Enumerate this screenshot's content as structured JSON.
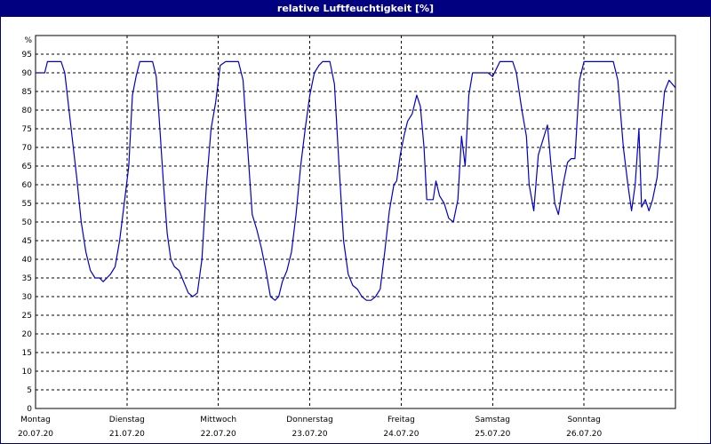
{
  "chart_data": {
    "type": "line",
    "title": "relative Luftfeuchtigkeit [%]",
    "y_unit": "%",
    "ylim": [
      0,
      100
    ],
    "yticks": [
      0,
      5,
      10,
      15,
      20,
      25,
      30,
      35,
      40,
      45,
      50,
      55,
      60,
      65,
      70,
      75,
      80,
      85,
      90,
      95
    ],
    "grid": true,
    "days": [
      {
        "weekday": "Montag",
        "date": "20.07.20"
      },
      {
        "weekday": "Dienstag",
        "date": "21.07.20"
      },
      {
        "weekday": "Mittwoch",
        "date": "22.07.20"
      },
      {
        "weekday": "Donnerstag",
        "date": "23.07.20"
      },
      {
        "weekday": "Freitag",
        "date": "24.07.20"
      },
      {
        "weekday": "Samstag",
        "date": "25.07.20"
      },
      {
        "weekday": "Sonntag",
        "date": "26.07.20"
      }
    ],
    "x_unit_note": "x in days since start of Monday 20.07.20",
    "xlim": [
      0,
      7
    ],
    "series": [
      {
        "color": "#0000cc",
        "points": [
          [
            0.0,
            90
          ],
          [
            0.1,
            90
          ],
          [
            0.13,
            93
          ],
          [
            0.28,
            93
          ],
          [
            0.32,
            90
          ],
          [
            0.38,
            77
          ],
          [
            0.45,
            62
          ],
          [
            0.5,
            50
          ],
          [
            0.55,
            42
          ],
          [
            0.6,
            37
          ],
          [
            0.65,
            35
          ],
          [
            0.7,
            35
          ],
          [
            0.74,
            34
          ],
          [
            0.78,
            35
          ],
          [
            0.82,
            36
          ],
          [
            0.87,
            38
          ],
          [
            0.92,
            45
          ],
          [
            0.97,
            55
          ],
          [
            1.02,
            65
          ],
          [
            1.06,
            84
          ],
          [
            1.1,
            89
          ],
          [
            1.14,
            93
          ],
          [
            1.28,
            93
          ],
          [
            1.32,
            89
          ],
          [
            1.36,
            75
          ],
          [
            1.4,
            60
          ],
          [
            1.44,
            47
          ],
          [
            1.48,
            40
          ],
          [
            1.52,
            38
          ],
          [
            1.57,
            37
          ],
          [
            1.62,
            34
          ],
          [
            1.67,
            31
          ],
          [
            1.72,
            30
          ],
          [
            1.77,
            31
          ],
          [
            1.82,
            40
          ],
          [
            1.87,
            60
          ],
          [
            1.92,
            75
          ],
          [
            1.97,
            82
          ],
          [
            2.02,
            92
          ],
          [
            2.08,
            93
          ],
          [
            2.22,
            93
          ],
          [
            2.27,
            88
          ],
          [
            2.32,
            70
          ],
          [
            2.37,
            52
          ],
          [
            2.42,
            48
          ],
          [
            2.47,
            43
          ],
          [
            2.52,
            37
          ],
          [
            2.57,
            30
          ],
          [
            2.62,
            29
          ],
          [
            2.66,
            30
          ],
          [
            2.7,
            34
          ],
          [
            2.75,
            37
          ],
          [
            2.8,
            42
          ],
          [
            2.85,
            52
          ],
          [
            2.9,
            65
          ],
          [
            2.95,
            75
          ],
          [
            3.0,
            84
          ],
          [
            3.05,
            90
          ],
          [
            3.1,
            92
          ],
          [
            3.14,
            93
          ],
          [
            3.22,
            93
          ],
          [
            3.27,
            87
          ],
          [
            3.32,
            65
          ],
          [
            3.37,
            45
          ],
          [
            3.42,
            36
          ],
          [
            3.47,
            33
          ],
          [
            3.52,
            32
          ],
          [
            3.57,
            30
          ],
          [
            3.62,
            29
          ],
          [
            3.67,
            29
          ],
          [
            3.72,
            30
          ],
          [
            3.77,
            32
          ],
          [
            3.82,
            42
          ],
          [
            3.87,
            53
          ],
          [
            3.92,
            60
          ],
          [
            3.95,
            61
          ],
          [
            3.99,
            68
          ],
          [
            4.03,
            73
          ],
          [
            4.07,
            77
          ],
          [
            4.12,
            79
          ],
          [
            4.17,
            84
          ],
          [
            4.21,
            81
          ],
          [
            4.25,
            70
          ],
          [
            4.28,
            56
          ],
          [
            4.35,
            56
          ],
          [
            4.38,
            61
          ],
          [
            4.42,
            57
          ],
          [
            4.47,
            55
          ],
          [
            4.52,
            51
          ],
          [
            4.57,
            50
          ],
          [
            4.62,
            56
          ],
          [
            4.66,
            73
          ],
          [
            4.7,
            65
          ],
          [
            4.74,
            84
          ],
          [
            4.78,
            90
          ],
          [
            4.95,
            90
          ],
          [
            5.0,
            89
          ],
          [
            5.08,
            93
          ],
          [
            5.22,
            93
          ],
          [
            5.26,
            90
          ],
          [
            5.32,
            80
          ],
          [
            5.37,
            73
          ],
          [
            5.4,
            60
          ],
          [
            5.45,
            53
          ],
          [
            5.5,
            68
          ],
          [
            5.55,
            72
          ],
          [
            5.6,
            76
          ],
          [
            5.64,
            65
          ],
          [
            5.68,
            55
          ],
          [
            5.72,
            52
          ],
          [
            5.77,
            60
          ],
          [
            5.82,
            66
          ],
          [
            5.86,
            67
          ],
          [
            5.9,
            67
          ],
          [
            5.95,
            88
          ],
          [
            6.0,
            93
          ],
          [
            6.32,
            93
          ],
          [
            6.37,
            88
          ],
          [
            6.43,
            70
          ],
          [
            6.48,
            60
          ],
          [
            6.52,
            53
          ],
          [
            6.56,
            60
          ],
          [
            6.6,
            75
          ],
          [
            6.63,
            54
          ],
          [
            6.67,
            56
          ],
          [
            6.71,
            53
          ],
          [
            6.75,
            56
          ],
          [
            6.8,
            62
          ],
          [
            6.85,
            77
          ],
          [
            6.88,
            85
          ],
          [
            6.93,
            88
          ],
          [
            7.0,
            86
          ]
        ]
      }
    ]
  }
}
